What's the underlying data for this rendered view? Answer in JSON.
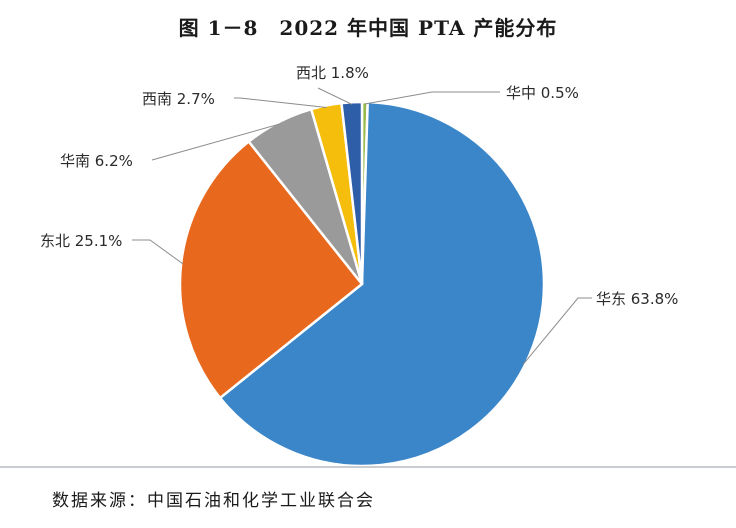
{
  "title": "图 1－8　2022 年中国 PTA 产能分布",
  "source": "数据来源：中国石油和化学工业联合会",
  "chart_data": {
    "type": "pie",
    "title": "图 1－8　2022 年中国 PTA 产能分布",
    "unit": "%",
    "start_angle_deg": 0,
    "direction": "clockwise",
    "slices": [
      {
        "name": "华中",
        "value": 0.5,
        "label": "华中 0.5%",
        "color": "#9ab94a"
      },
      {
        "name": "华东",
        "value": 63.8,
        "label": "华东 63.8%",
        "color": "#3a86c8"
      },
      {
        "name": "东北",
        "value": 25.1,
        "label": "东北 25.1%",
        "color": "#e8681e"
      },
      {
        "name": "华南",
        "value": 6.2,
        "label": "华南 6.2%",
        "color": "#9a9a9a"
      },
      {
        "name": "西南",
        "value": 2.7,
        "label": "西南 2.7%",
        "color": "#f5bd0c"
      },
      {
        "name": "西北",
        "value": 1.8,
        "label": "西北 1.8%",
        "color": "#2f5ea8"
      }
    ]
  }
}
